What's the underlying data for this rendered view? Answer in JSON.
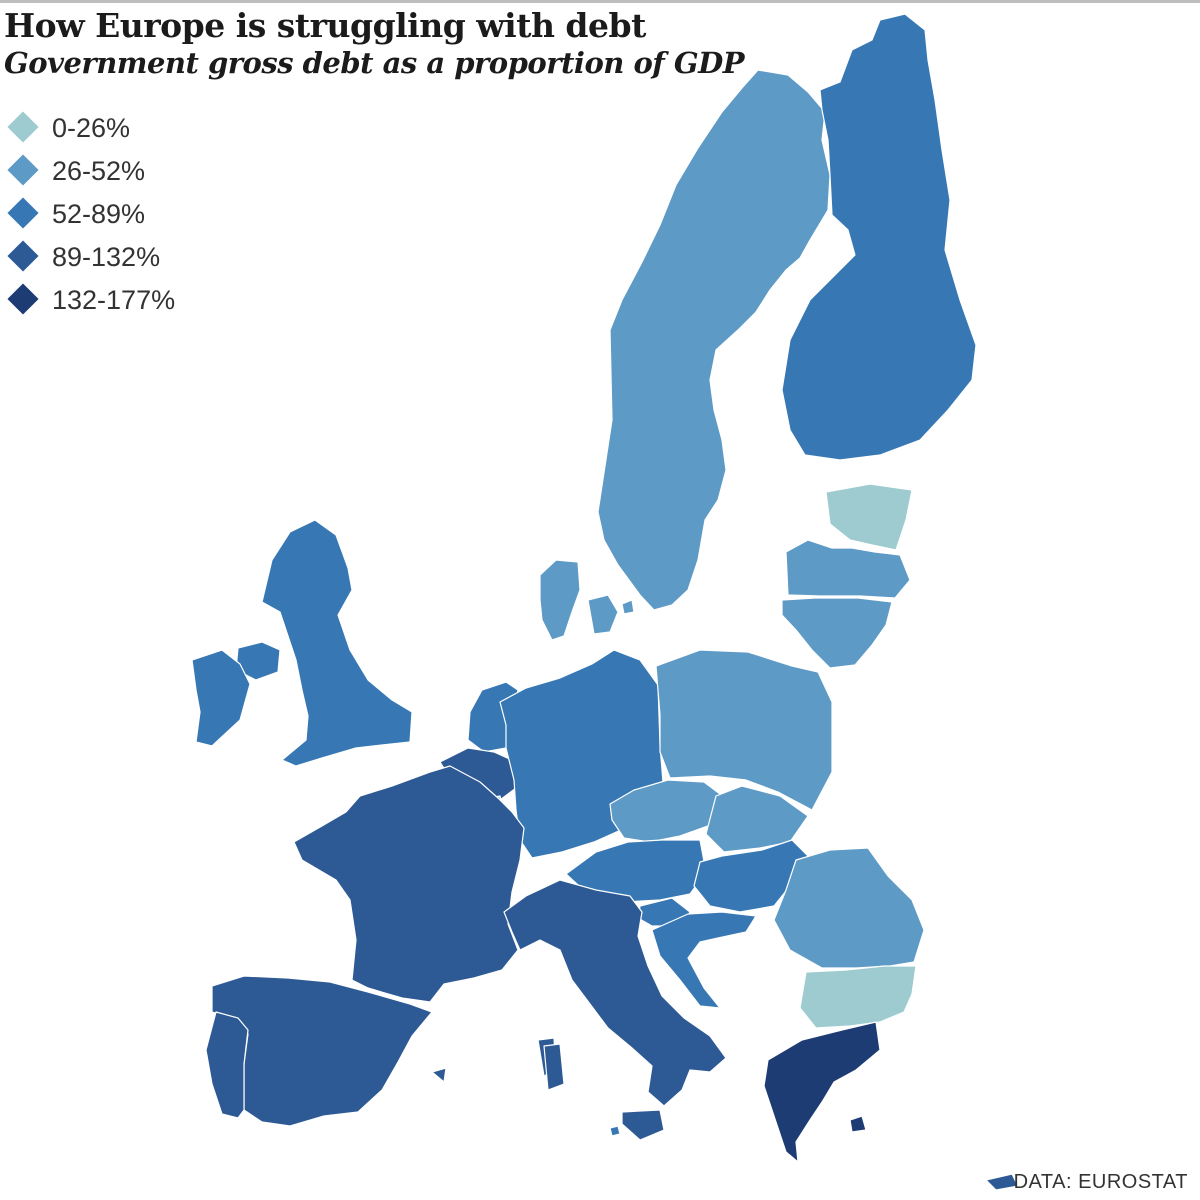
{
  "header": {
    "title": "How Europe is struggling with debt",
    "subtitle": "Government gross debt as a proportion of GDP"
  },
  "legend": {
    "items": [
      {
        "label": "0-26%",
        "color": "#9dcbcf"
      },
      {
        "label": "26-52%",
        "color": "#5e9ac6"
      },
      {
        "label": "52-89%",
        "color": "#3778b4"
      },
      {
        "label": "89-132%",
        "color": "#2d5a94"
      },
      {
        "label": "132-177%",
        "color": "#1d3c74"
      }
    ]
  },
  "map": {
    "countries": [
      {
        "name": "Sweden",
        "bin": 1
      },
      {
        "name": "Finland",
        "bin": 2
      },
      {
        "name": "Estonia",
        "bin": 0
      },
      {
        "name": "Latvia",
        "bin": 1
      },
      {
        "name": "Lithuania",
        "bin": 1
      },
      {
        "name": "Denmark",
        "bin": 1
      },
      {
        "name": "United Kingdom",
        "bin": 2
      },
      {
        "name": "Ireland",
        "bin": 2
      },
      {
        "name": "Netherlands",
        "bin": 2
      },
      {
        "name": "Belgium",
        "bin": 3
      },
      {
        "name": "Luxembourg",
        "bin": 0
      },
      {
        "name": "Germany",
        "bin": 2
      },
      {
        "name": "Poland",
        "bin": 1
      },
      {
        "name": "Czech Republic",
        "bin": 1
      },
      {
        "name": "Slovakia",
        "bin": 1
      },
      {
        "name": "Austria",
        "bin": 2
      },
      {
        "name": "Hungary",
        "bin": 2
      },
      {
        "name": "Slovenia",
        "bin": 2
      },
      {
        "name": "Croatia",
        "bin": 2
      },
      {
        "name": "Romania",
        "bin": 1
      },
      {
        "name": "Bulgaria",
        "bin": 0
      },
      {
        "name": "Greece",
        "bin": 4
      },
      {
        "name": "Cyprus",
        "bin": 3
      },
      {
        "name": "Malta",
        "bin": 2
      },
      {
        "name": "France",
        "bin": 3
      },
      {
        "name": "Spain",
        "bin": 3
      },
      {
        "name": "Portugal",
        "bin": 3
      },
      {
        "name": "Italy",
        "bin": 3
      }
    ]
  },
  "footer": {
    "source": "DATA: EUROSTAT"
  }
}
